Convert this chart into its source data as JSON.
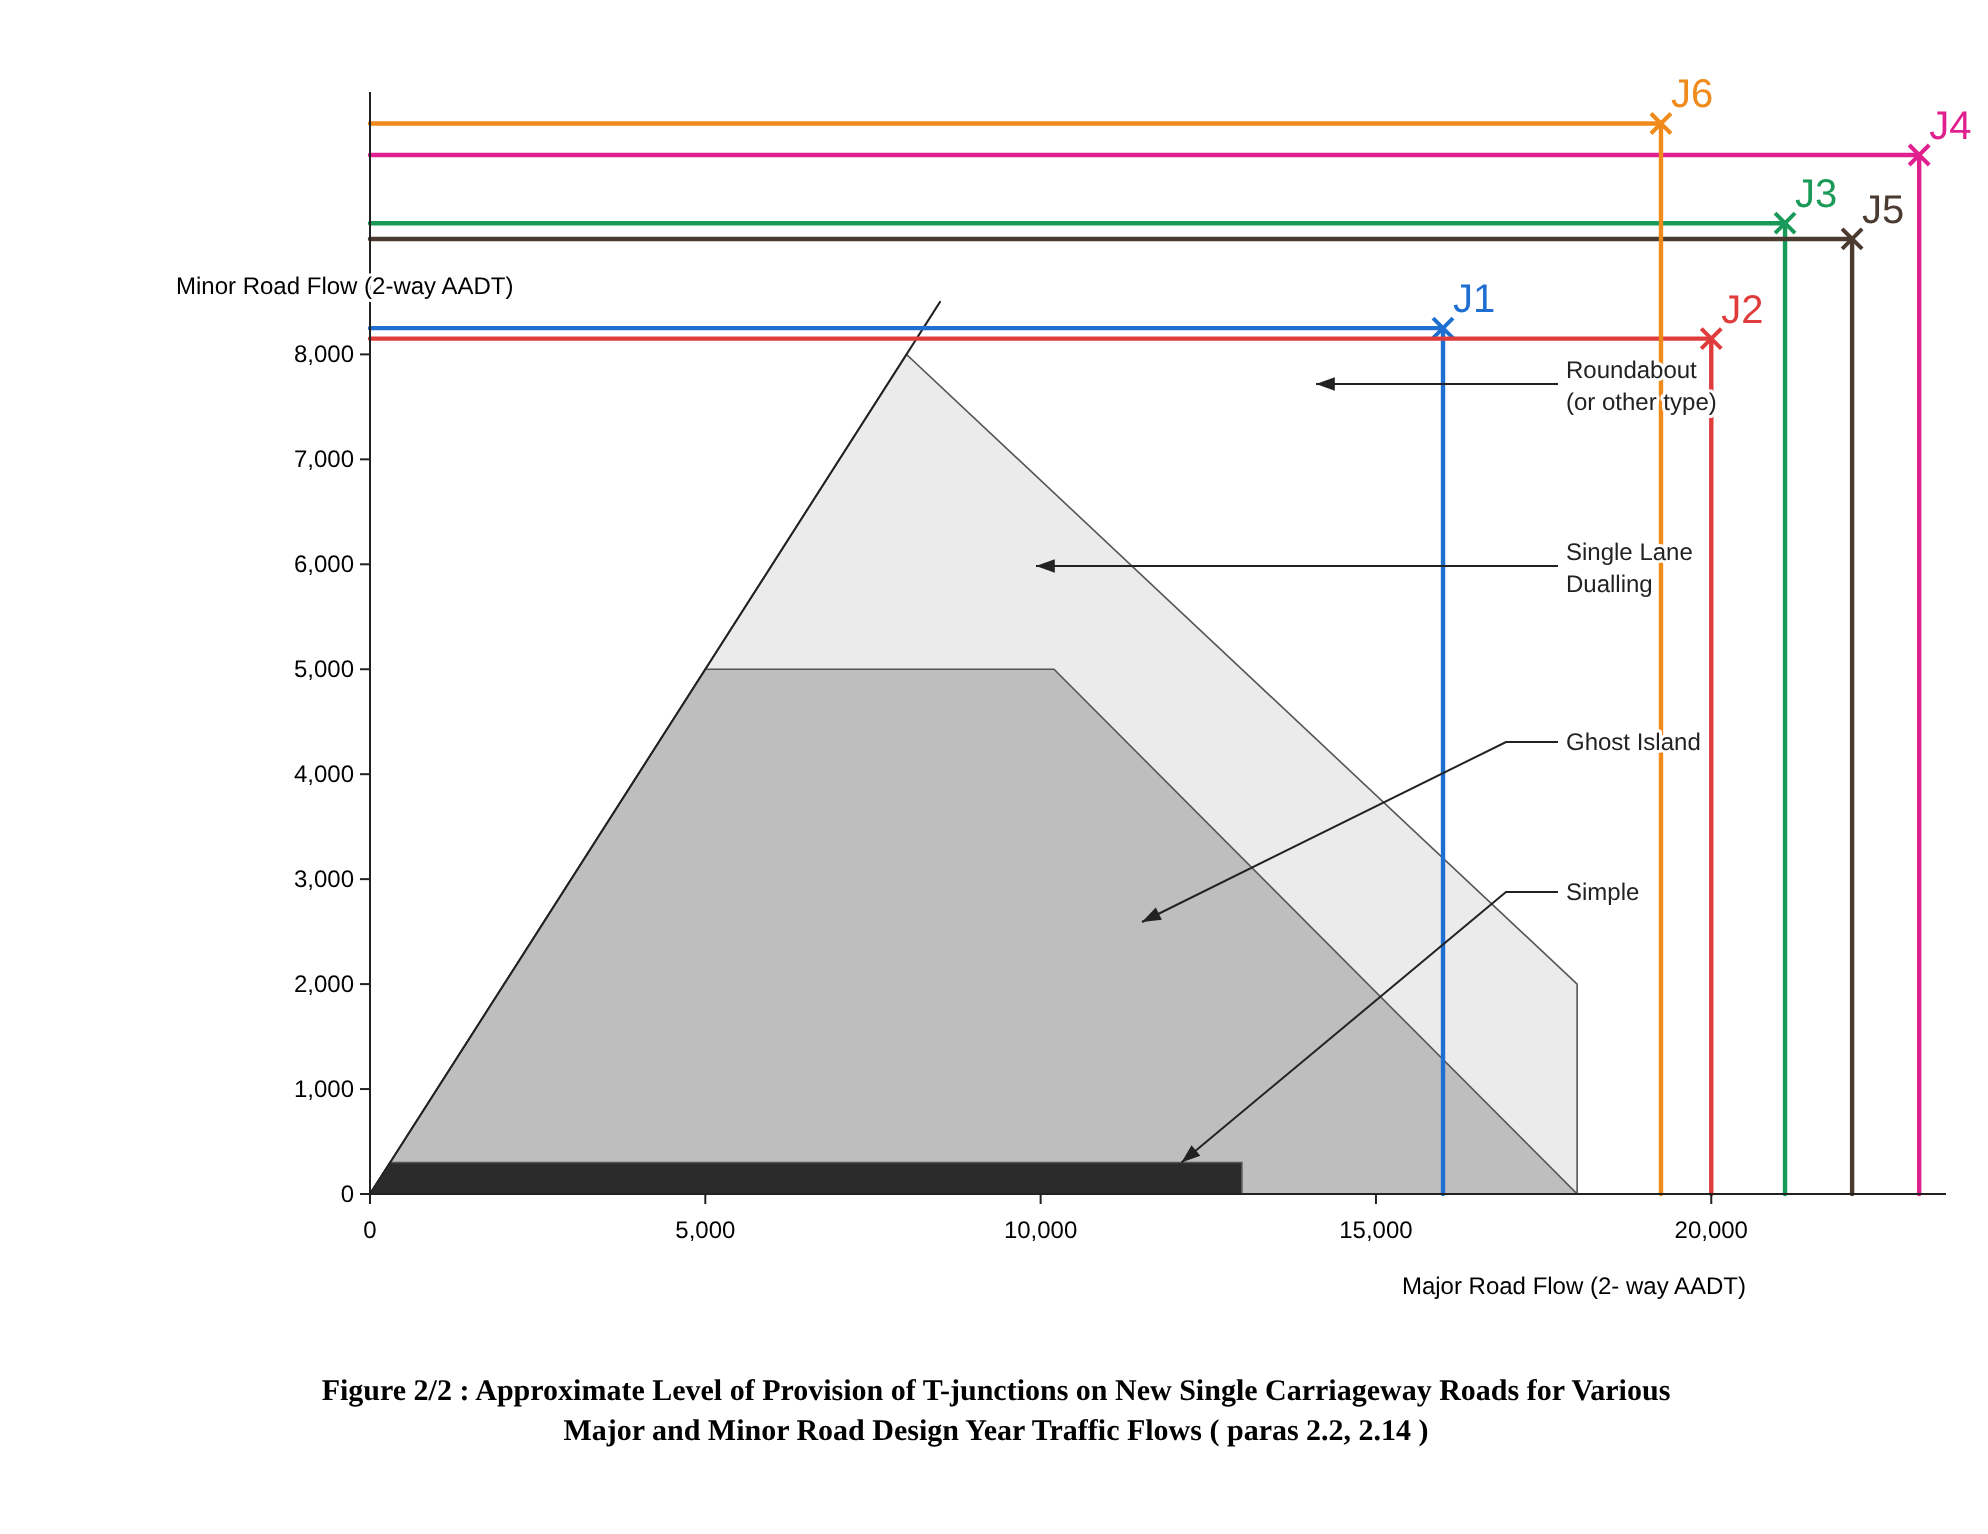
{
  "chart_data": {
    "type": "line",
    "title": "Figure 2/2 : Approximate Level of Provision of T-junctions on New Single Carriageway Roads for Various\nMajor and Minor Road Design Year Traffic Flows ( paras 2.2, 2.14 )",
    "xlabel": "Major Road Flow (2- way AADT)",
    "ylabel": "Minor Road Flow (2-way AADT)",
    "xlim": [
      0,
      23500
    ],
    "ylim": [
      0,
      10500
    ],
    "xticks": [
      0,
      {
        "value": 5000,
        "label": "5,000"
      },
      {
        "value": 10000,
        "label": "10,000"
      },
      {
        "value": 15000,
        "label": "15,000"
      },
      {
        "value": 20000,
        "label": "20,000"
      }
    ],
    "yticks": [
      0,
      {
        "value": 1000,
        "label": "1,000"
      },
      {
        "value": 2000,
        "label": "2,000"
      },
      {
        "value": 3000,
        "label": "3,000"
      },
      {
        "value": 4000,
        "label": "4,000"
      },
      {
        "value": 5000,
        "label": "5,000"
      },
      {
        "value": 6000,
        "label": "6,000"
      },
      {
        "value": 7000,
        "label": "7,000"
      },
      {
        "value": 8000,
        "label": "8,000"
      }
    ],
    "series": [
      {
        "type": "area",
        "color": "#ebebeb",
        "x": [
          0,
          8000,
          18000,
          18000
        ],
        "values": [
          0,
          8000,
          2000,
          0
        ]
      },
      {
        "type": "area",
        "color": "#bebebe",
        "x": [
          0,
          5000,
          10200,
          18000
        ],
        "values": [
          0,
          5000,
          5000,
          0
        ]
      },
      {
        "type": "area",
        "color": "#2b2b2b",
        "x": [
          0,
          300,
          13000,
          13000
        ],
        "values": [
          0,
          300,
          300,
          0
        ]
      },
      {
        "color": "#222222",
        "x": [
          0,
          8500
        ],
        "values": [
          0,
          8500
        ]
      },
      {
        "name": "J1",
        "color": "#1f6fd1",
        "x": [
          0,
          16000,
          16000
        ],
        "values": [
          8250,
          8250,
          0
        ]
      },
      {
        "name": "J2",
        "color": "#e03c3c",
        "x": [
          0,
          20000,
          20000
        ],
        "values": [
          8150,
          8150,
          0
        ]
      },
      {
        "name": "J3",
        "color": "#1a9a58",
        "x": [
          0,
          21100,
          21100
        ],
        "values": [
          9250,
          9250,
          0
        ]
      },
      {
        "name": "J4",
        "color": "#e0208f",
        "x": [
          0,
          23100,
          23100
        ],
        "values": [
          9900,
          9900,
          0
        ]
      },
      {
        "name": "J5",
        "color": "#4a3a30",
        "x": [
          0,
          22100,
          22100
        ],
        "values": [
          9100,
          9100,
          0
        ]
      },
      {
        "name": "J6",
        "color": "#f08a1a",
        "x": [
          0,
          19250,
          19250
        ],
        "values": [
          10200,
          10200,
          0
        ]
      }
    ],
    "annotations": [
      "Roundabout\n(or other type)",
      "Single Lane\nDualling",
      "Ghost Island",
      {
        "text": "Simple",
        "x": 12100,
        "y": 300
      }
    ]
  }
}
